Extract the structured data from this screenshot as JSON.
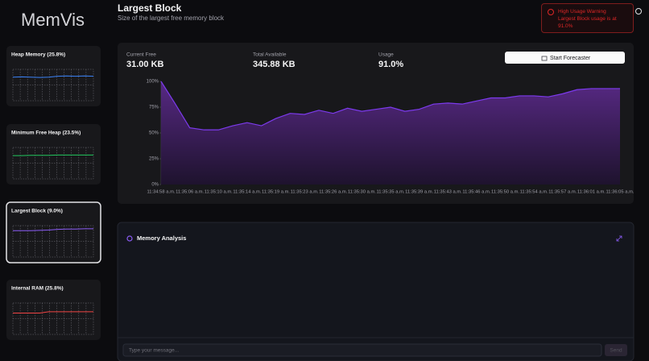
{
  "app": {
    "logo": "MemVis"
  },
  "sidebar": [
    {
      "label": "Heap Memory (25.8%)",
      "color": "#3b82f6",
      "ylim": [
        0,
        100
      ],
      "values": [
        75,
        76,
        75,
        74,
        75,
        78,
        79,
        78,
        79,
        78
      ]
    },
    {
      "label": "Minimum Free Heap (23.5%)",
      "color": "#22c55e",
      "ylim": [
        0,
        100
      ],
      "values": [
        74,
        74,
        75,
        75,
        75,
        76,
        76,
        76,
        76,
        76
      ]
    },
    {
      "label": "Largest Block (9.0%)",
      "color": "#8b5cf6",
      "ylim": [
        0,
        100
      ],
      "values": [
        84,
        84,
        84,
        85,
        86,
        88,
        89,
        89,
        90,
        90
      ]
    },
    {
      "label": "Internal RAM (25.8%)",
      "color": "#ef4444",
      "ylim": [
        0,
        100
      ],
      "values": [
        68,
        68,
        68,
        68,
        72,
        72,
        72,
        72,
        72,
        72
      ]
    }
  ],
  "header": {
    "title": "Largest Block",
    "subtitle": "Size of the largest free memory block"
  },
  "alert": {
    "title": "High Usage Warning",
    "message": "Largest Block usage is at 91.0%"
  },
  "stats": [
    {
      "label": "Current Free",
      "value": "31.00 KB"
    },
    {
      "label": "Total Available",
      "value": "345.88 KB"
    },
    {
      "label": "Usage",
      "value": "91.0%"
    }
  ],
  "button": "Start Forecaster",
  "chart_data": {
    "type": "area",
    "color": "#7c3aed",
    "categories": [
      "11:34:58 a.m.",
      null,
      "11:35:06 a.m.",
      null,
      "11:35:10 a.m.",
      null,
      "11:35:14 a.m.",
      null,
      "11:35:19 a.m.",
      null,
      "11:35:23 a.m.",
      null,
      "11:35:26 a.m.",
      null,
      "11:35:30 a.m.",
      null,
      "11:35:35 a.m.",
      null,
      "11:35:39 a.m.",
      null,
      "11:35:43 a.m.",
      null,
      "11:35:46 a.m.",
      null,
      "11:35:50 a.m.",
      null,
      "11:35:54 a.m.",
      null,
      "11:35:57 a.m.",
      null,
      "11:36:01 a.m.",
      null,
      "11:36:05 a.m."
    ],
    "values": [
      100,
      78,
      55,
      53,
      53,
      57,
      60,
      57,
      64,
      69,
      68,
      72,
      69,
      74,
      71,
      73,
      75,
      71,
      73,
      78,
      79,
      78,
      81,
      84,
      84,
      86,
      86,
      85,
      88,
      92,
      93,
      93,
      93
    ],
    "ylim": [
      0,
      100
    ],
    "yticks": [
      {
        "value": 0,
        "label": "0%"
      },
      {
        "value": 25,
        "label": "25%"
      },
      {
        "value": 50,
        "label": "50%"
      },
      {
        "value": 75,
        "label": "75%"
      },
      {
        "value": 100,
        "label": "100%"
      }
    ]
  },
  "analysis": {
    "title": "Memory Analysis"
  },
  "input": {
    "placeholder": "Type your message...",
    "send": "Send"
  }
}
